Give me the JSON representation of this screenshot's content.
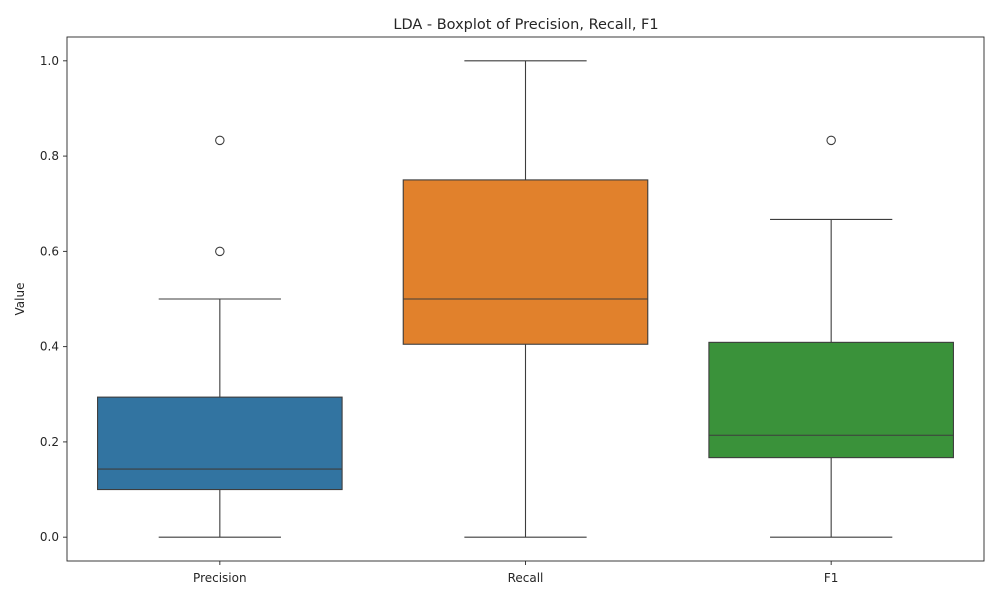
{
  "chart_data": {
    "type": "box",
    "title": "LDA - Boxplot of Precision, Recall, F1",
    "xlabel": "",
    "ylabel": "Value",
    "ylim": [
      -0.05,
      1.05
    ],
    "yticks": [
      0.0,
      0.2,
      0.4,
      0.6,
      0.8,
      1.0
    ],
    "ytick_labels": [
      "0.0",
      "0.2",
      "0.4",
      "0.6",
      "0.8",
      "1.0"
    ],
    "categories": [
      "Precision",
      "Recall",
      "F1"
    ],
    "grid": false,
    "legend": "none",
    "boxes": [
      {
        "label": "Precision",
        "color": "#3274a1",
        "whisker_low": 0.0,
        "q1": 0.1,
        "median": 0.143,
        "q3": 0.294,
        "whisker_high": 0.5,
        "outliers": [
          0.6,
          0.833
        ]
      },
      {
        "label": "Recall",
        "color": "#e1812c",
        "whisker_low": 0.0,
        "q1": 0.405,
        "median": 0.5,
        "q3": 0.75,
        "whisker_high": 1.0,
        "outliers": []
      },
      {
        "label": "F1",
        "color": "#3a923a",
        "whisker_low": 0.0,
        "q1": 0.167,
        "median": 0.214,
        "q3": 0.409,
        "whisker_high": 0.667,
        "outliers": [
          0.833
        ]
      }
    ]
  }
}
